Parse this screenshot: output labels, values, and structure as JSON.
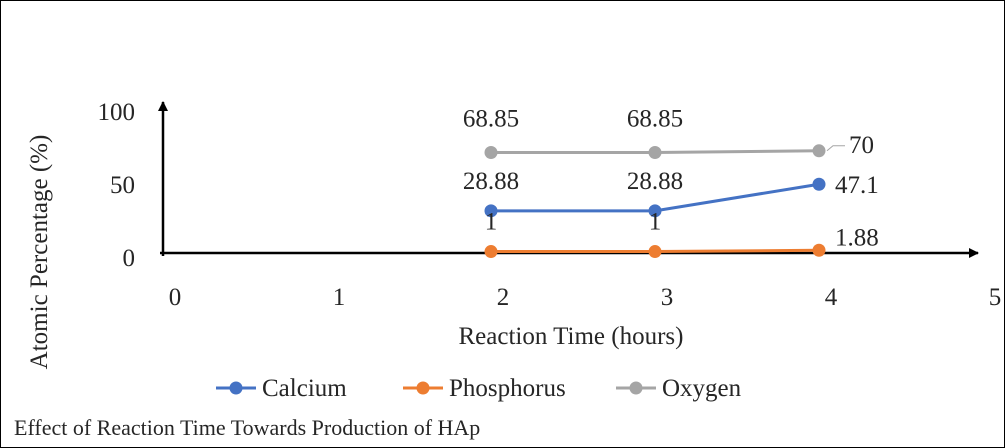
{
  "chart_data": {
    "type": "line",
    "title": "",
    "xlabel": "Reaction Time (hours)",
    "ylabel": "Atomic Percentage (%)",
    "xlim": [
      0,
      5
    ],
    "ylim": [
      0,
      100
    ],
    "x_ticks": [
      "0",
      "1",
      "2",
      "3",
      "4",
      "5"
    ],
    "y_ticks": [
      "0",
      "50",
      "100"
    ],
    "grid": false,
    "legend_position": "bottom",
    "series": [
      {
        "name": "Calcium",
        "color": "#4472C4",
        "x": [
          2,
          3,
          4
        ],
        "y": [
          28.88,
          28.88,
          47.1
        ],
        "labels": [
          "28.88",
          "28.88",
          "47.1"
        ]
      },
      {
        "name": "Phosphorus",
        "color": "#ED7D31",
        "x": [
          2,
          3,
          4
        ],
        "y": [
          1,
          1,
          1.88
        ],
        "labels": [
          "1",
          "1",
          "1.88"
        ]
      },
      {
        "name": "Oxygen",
        "color": "#A5A5A5",
        "x": [
          2,
          3,
          4
        ],
        "y": [
          68.85,
          68.85,
          70
        ],
        "labels": [
          "68.85",
          "68.85",
          "70"
        ]
      }
    ]
  },
  "caption": "Effect of Reaction Time Towards Production of HAp"
}
